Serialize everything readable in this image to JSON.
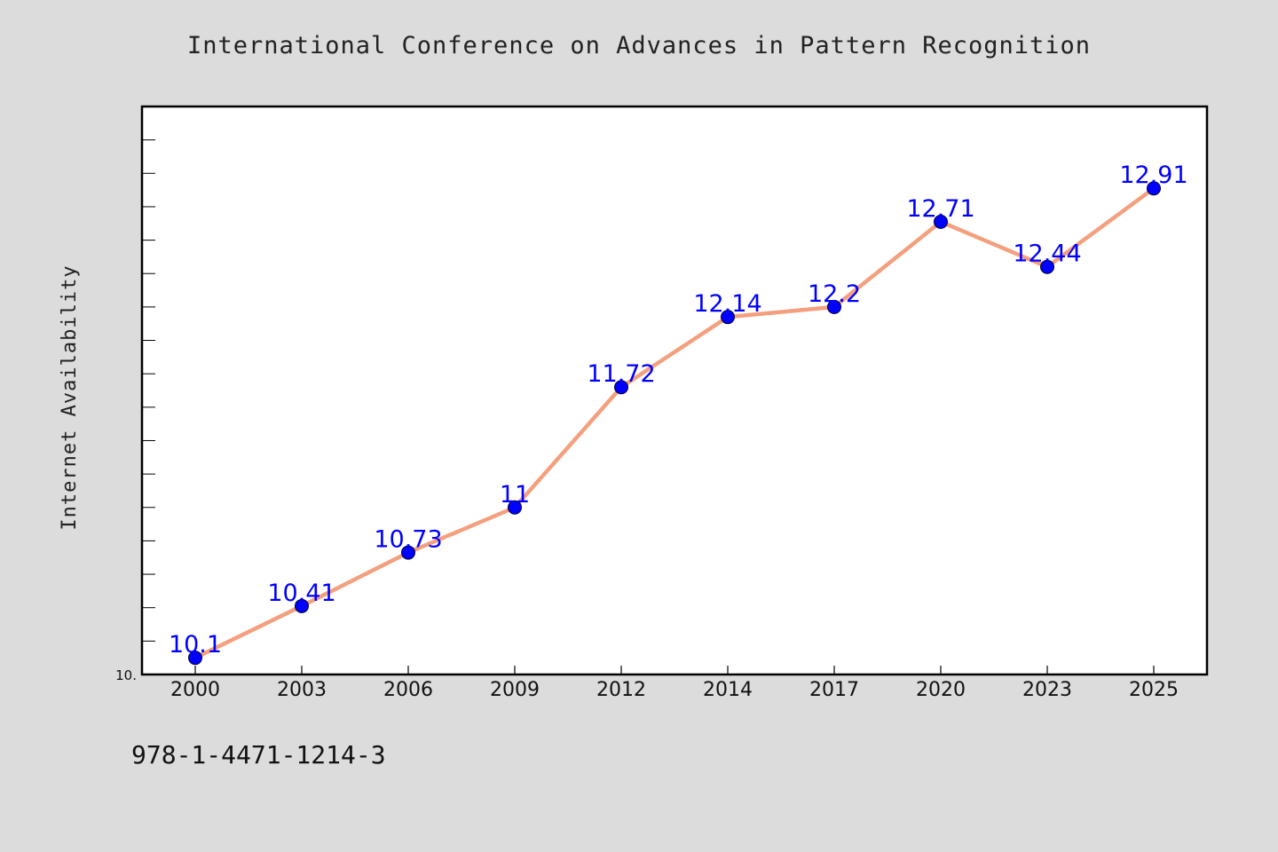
{
  "chart_data": {
    "type": "line",
    "title": "International Conference on Advances in Pattern Recognition",
    "xlabel": "",
    "ylabel": "Internet Availability",
    "categories": [
      "2000",
      "2003",
      "2006",
      "2009",
      "2012",
      "2014",
      "2017",
      "2020",
      "2023",
      "2025"
    ],
    "series": [
      {
        "values": [
          10.1,
          10.41,
          10.73,
          11,
          11.72,
          12.14,
          12.2,
          12.71,
          12.44,
          12.91
        ]
      }
    ],
    "data_labels": [
      "10.1",
      "10.41",
      "10.73",
      "11",
      "11.72",
      "12.14",
      "12.2",
      "12.71",
      "12.44",
      "12.91"
    ],
    "ylim": [
      10.0,
      13.4
    ],
    "y_tick_labels": [
      {
        "value": 10.0,
        "label": "10."
      }
    ],
    "y_minor_tick_step": 0.2,
    "grid": false,
    "line_color": "#f4a07f",
    "marker_color": "#0000ff",
    "label_color": "#0000ff",
    "plot_background": "#ffffff",
    "figure_background": "#dcdcdc"
  },
  "footer": {
    "isbn": "978-1-4471-1214-3"
  }
}
